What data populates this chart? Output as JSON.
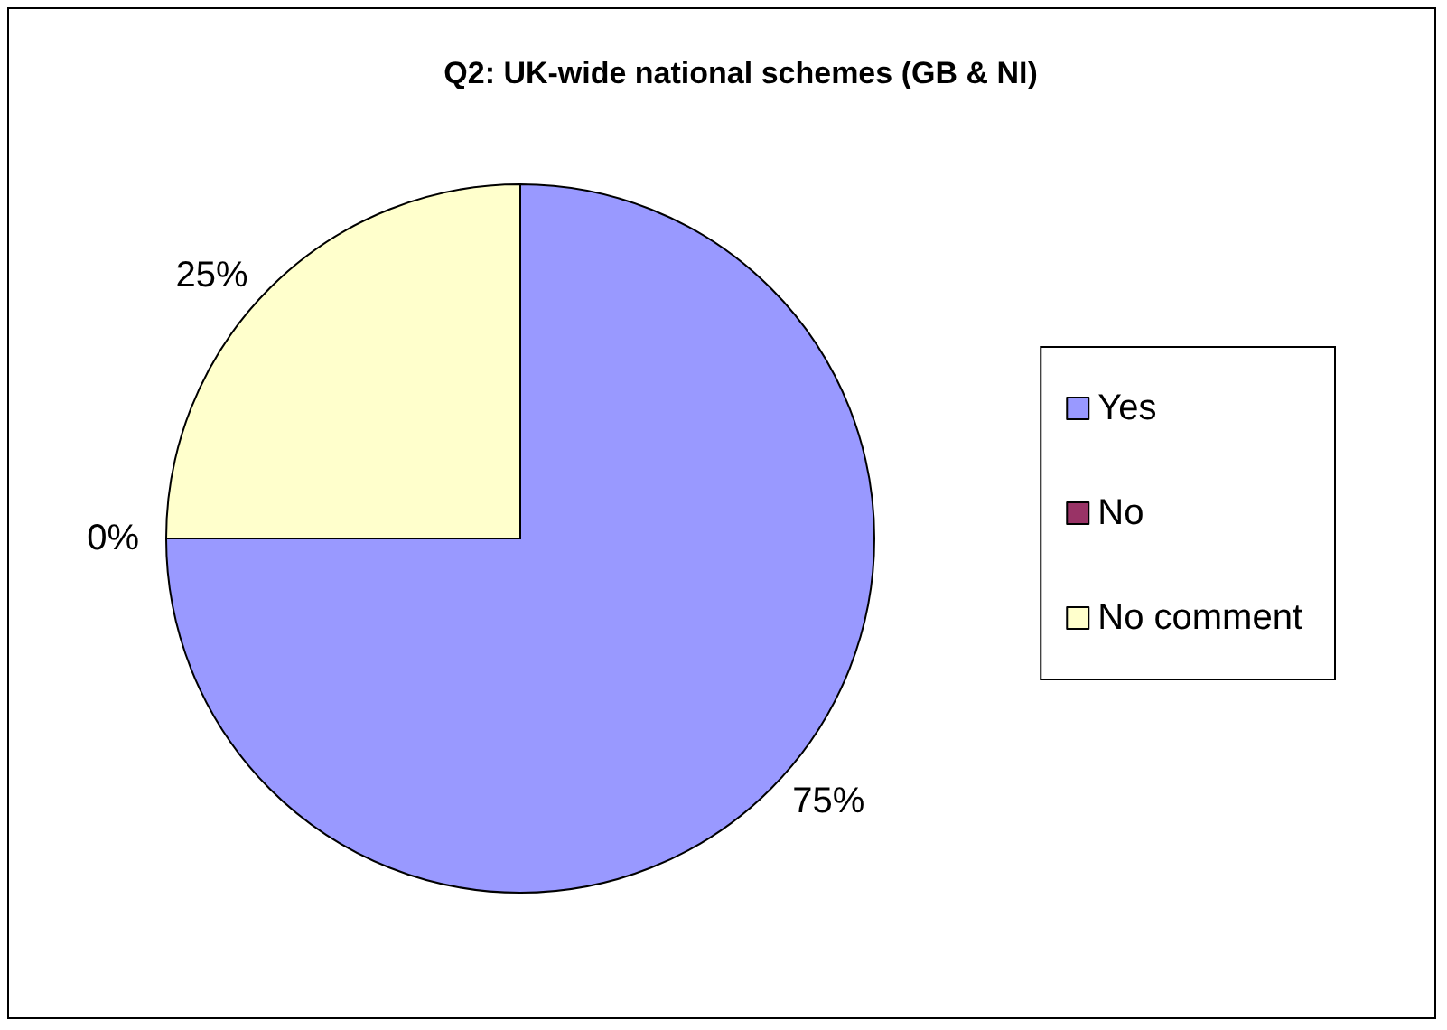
{
  "chart_data": {
    "type": "pie",
    "title": "Q2: UK-wide national schemes (GB & NI)",
    "categories": [
      "Yes",
      "No",
      "No comment"
    ],
    "values": [
      75,
      0,
      25
    ],
    "value_labels": [
      "75%",
      "0%",
      "25%"
    ],
    "colors": [
      "#9999ff",
      "#993366",
      "#ffffcc"
    ],
    "legend": "right"
  }
}
